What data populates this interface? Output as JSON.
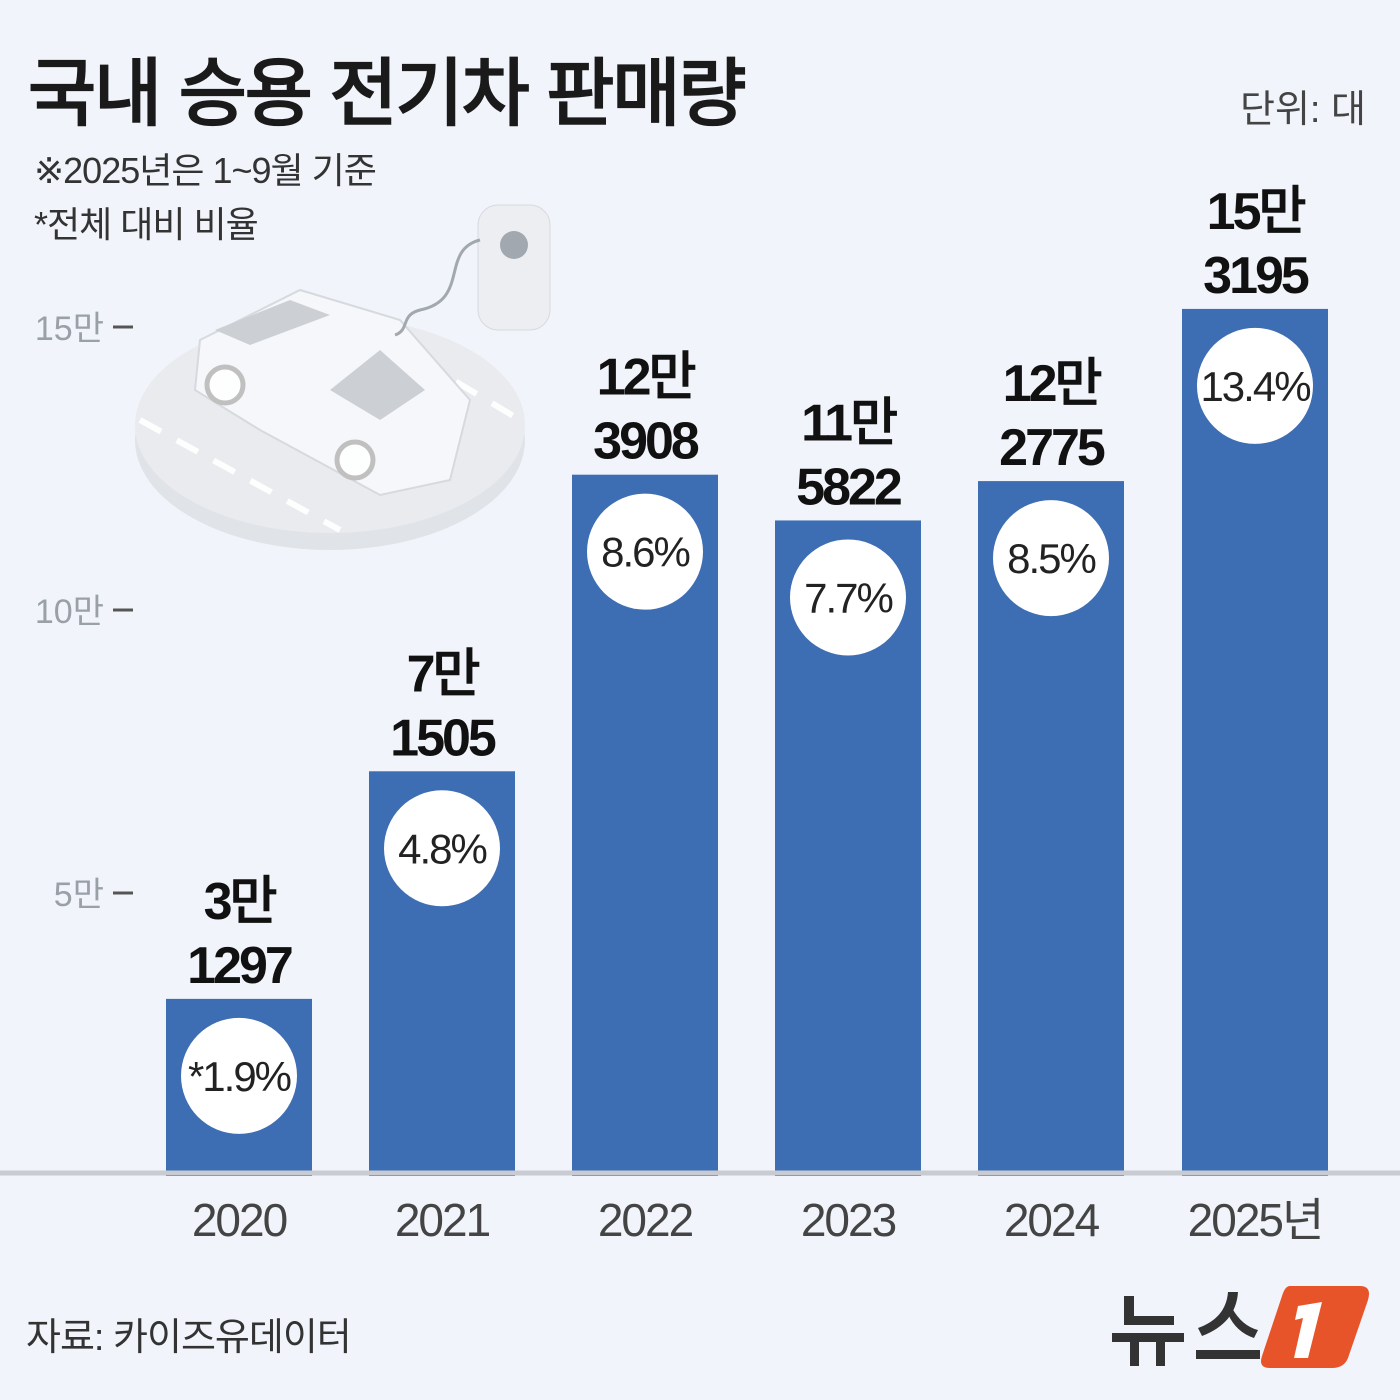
{
  "header": {
    "title": "국내 승용 전기차 판매량",
    "unit": "단위: 대",
    "notes": [
      "※2025년은 1~9월 기준",
      "*전체 대비 비율"
    ]
  },
  "footer": {
    "source": "자료: 카이즈유데이터",
    "logo_text": "뉴스1"
  },
  "colors": {
    "bar": "#3d6db3",
    "background": "#f1f5fb",
    "logo_accent": "#e8542a"
  },
  "chart_data": {
    "type": "bar",
    "title": "국내 승용 전기차 판매량",
    "ylabel": "단위: 대",
    "ylim": [
      0,
      150000
    ],
    "yticks": [
      {
        "value": 50000,
        "label": "5만"
      },
      {
        "value": 100000,
        "label": "10만"
      },
      {
        "value": 150000,
        "label": "15만"
      }
    ],
    "categories": [
      "2020",
      "2021",
      "2022",
      "2023",
      "2024",
      "2025년"
    ],
    "values": [
      31297,
      71505,
      123908,
      115822,
      122775,
      153195
    ],
    "value_labels": [
      [
        "3만",
        "1297"
      ],
      [
        "7만",
        "1505"
      ],
      [
        "12만",
        "3908"
      ],
      [
        "11만",
        "5822"
      ],
      [
        "12만",
        "2775"
      ],
      [
        "15만",
        "3195"
      ]
    ],
    "share_labels": [
      "*1.9%",
      "4.8%",
      "8.6%",
      "7.7%",
      "8.5%",
      "13.4%"
    ],
    "grid": false
  }
}
